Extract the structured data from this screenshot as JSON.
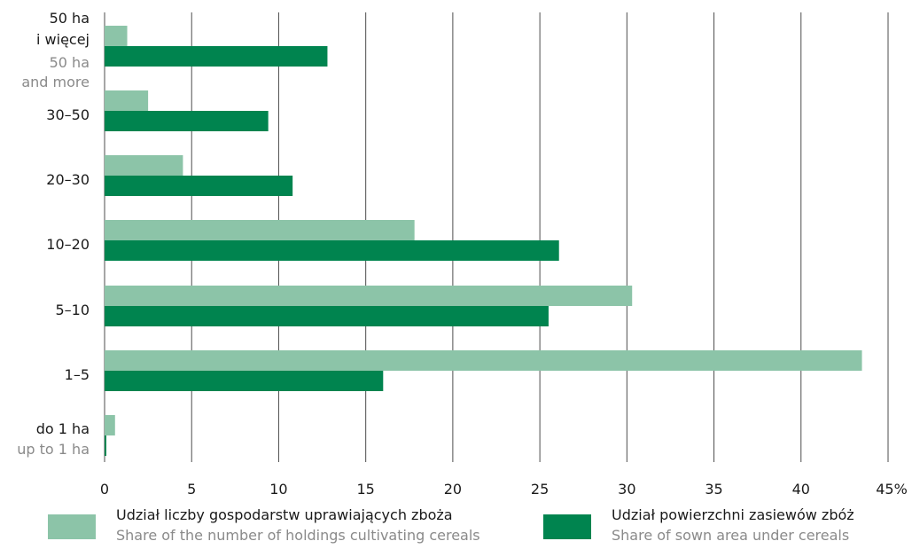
{
  "colors": {
    "holdings": "#8cc4a8",
    "area": "#00844f",
    "grid": "#4d4d4d",
    "text": "#1a1a1a",
    "subtext": "#8a8a8a"
  },
  "chart_data": {
    "type": "bar",
    "orientation": "horizontal",
    "categories": [
      {
        "label": [
          "50 ha",
          "i więcej"
        ],
        "sublabel": [
          "50 ha",
          "and  more"
        ]
      },
      {
        "label": [
          "30–50"
        ],
        "sublabel": []
      },
      {
        "label": [
          "20–30"
        ],
        "sublabel": []
      },
      {
        "label": [
          "10–20"
        ],
        "sublabel": []
      },
      {
        "label": [
          "5–10"
        ],
        "sublabel": []
      },
      {
        "label": [
          "1–5"
        ],
        "sublabel": []
      },
      {
        "label": [
          "do 1 ha"
        ],
        "sublabel": [
          "up to 1 ha"
        ]
      }
    ],
    "series": [
      {
        "name": "Udział liczby gospodarstw uprawiających zboża",
        "name_en": "Share of the number of holdings cultivating cereals",
        "color": "#8cc4a8",
        "values": [
          1.3,
          2.5,
          4.5,
          17.8,
          30.3,
          43.5,
          0.6
        ]
      },
      {
        "name": "Udział powierzchni zasiewów zbóż",
        "name_en": "Share of sown area under cereals",
        "color": "#00844f",
        "values": [
          12.8,
          9.4,
          10.8,
          26.1,
          25.5,
          16.0,
          0.1
        ]
      }
    ],
    "xlim": [
      0,
      45
    ],
    "xticks": [
      "0",
      "5",
      "10",
      "15",
      "20",
      "25",
      "30",
      "35",
      "40",
      "45%"
    ],
    "xtick_values": [
      0,
      5,
      10,
      15,
      20,
      25,
      30,
      35,
      40,
      45
    ],
    "grid": true,
    "legend_position": "bottom",
    "title": "",
    "xlabel": "",
    "ylabel": ""
  }
}
